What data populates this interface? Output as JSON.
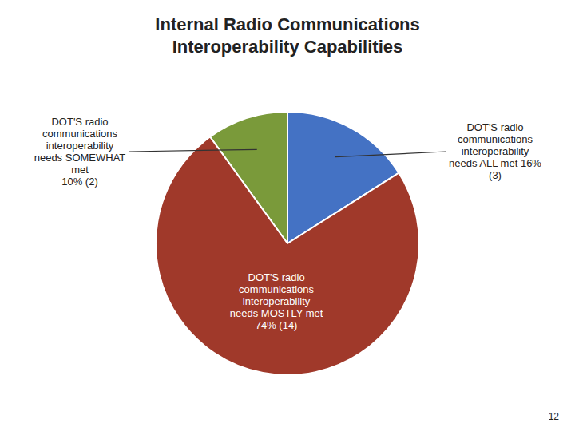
{
  "chart_data": {
    "type": "pie",
    "title": "Internal Radio Communications\nInteroperability Capabilities",
    "categories": [
      "DOT'S radio\ncommunications\ninteroperability\nneeds SOMEWHAT\nmet\n10% (2)",
      "DOT'S radio\ncommunications\ninteroperability\nneeds ALL met 16%\n(3)",
      "DOT'S radio\ncommunications\ninteroperability\nneeds MOSTLY met\n74% (14)"
    ],
    "values": [
      10,
      16,
      74
    ],
    "colors": [
      "#7a9a3a",
      "#4472c4",
      "#a0392a"
    ],
    "annotations": [
      "12"
    ]
  }
}
